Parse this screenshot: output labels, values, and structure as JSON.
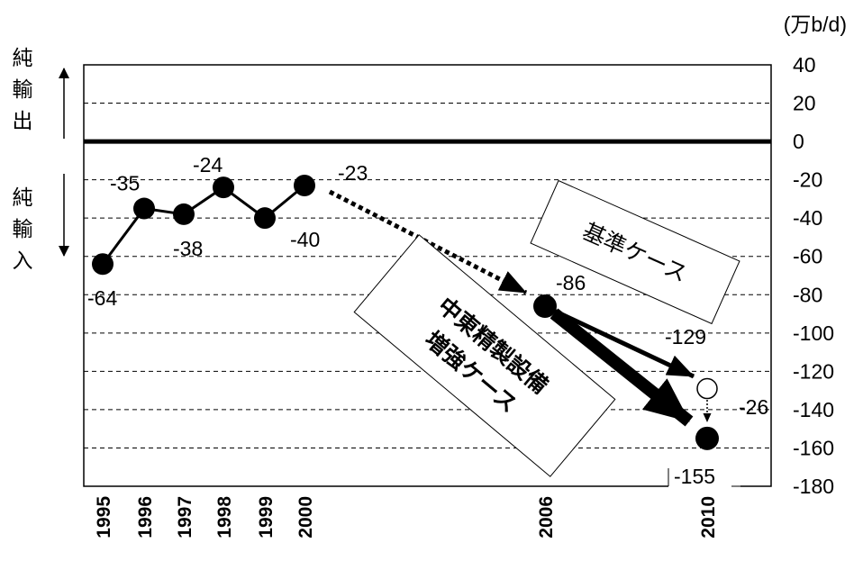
{
  "chart_data": {
    "type": "line",
    "unit": "(万b/d)",
    "ylim": [
      -180,
      40
    ],
    "yticks": [
      "40",
      "20",
      "0",
      "-20",
      "-40",
      "-60",
      "-80",
      "-100",
      "-120",
      "-140",
      "-160",
      "-180"
    ],
    "categories": [
      "1995",
      "1996",
      "1997",
      "1998",
      "1999",
      "2000",
      "2006",
      "2010"
    ],
    "grid": true,
    "side_labels": {
      "export": "純輸出",
      "import": "純輸入"
    },
    "series": [
      {
        "name": "",
        "points": [
          {
            "x": "1995",
            "y": -64,
            "label": "-64"
          },
          {
            "x": "1996",
            "y": -35,
            "label": "-35"
          },
          {
            "x": "1997",
            "y": -38,
            "label": "-38"
          },
          {
            "x": "1998",
            "y": -24,
            "label": "-24"
          },
          {
            "x": "1999",
            "y": -40,
            "label": "-40"
          },
          {
            "x": "2000",
            "y": -23,
            "label": "-23"
          }
        ]
      },
      {
        "name": "基準ケース",
        "points": [
          {
            "x": "2006",
            "y": -86,
            "label": "-86"
          },
          {
            "x": "2010",
            "y": -129,
            "label": "-129"
          }
        ]
      },
      {
        "name": "中東精製設備増強ケース",
        "points": [
          {
            "x": "2006",
            "y": -86,
            "label": ""
          },
          {
            "x": "2010",
            "y": -155,
            "label": "-155"
          }
        ]
      }
    ],
    "annotations": [
      {
        "text": "-26",
        "note": "difference between cases in 2010"
      }
    ],
    "case_labels": {
      "base": "基準ケース",
      "middle_east_line1": "中東精製設備",
      "middle_east_line2": "増強ケース"
    }
  }
}
